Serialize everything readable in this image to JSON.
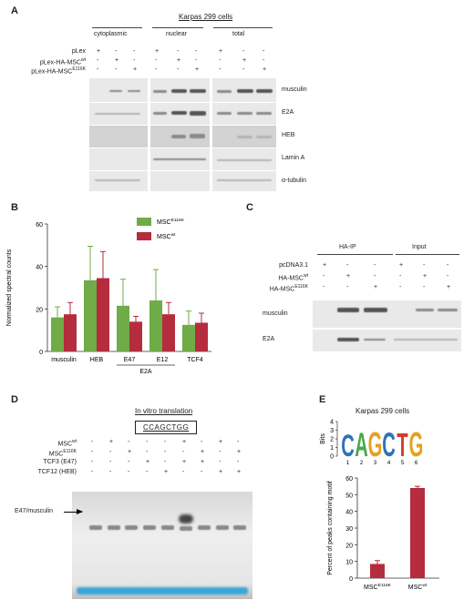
{
  "panelA": {
    "letter": "A",
    "title": "Karpas 299 cells",
    "fractions": [
      "cytoplasmic",
      "nuclear",
      "total"
    ],
    "rows": [
      {
        "label": "pLex",
        "marks": [
          "+",
          "-",
          "-",
          "+",
          "-",
          "-",
          "+",
          "-",
          "-"
        ]
      },
      {
        "label": "pLex-HA-MSC",
        "sup": "wt",
        "marks": [
          "-",
          "+",
          "-",
          "-",
          "+",
          "-",
          "-",
          "+",
          "-"
        ]
      },
      {
        "label": "pLex-HA-MSC",
        "sup": "E116K",
        "marks": [
          "-",
          "-",
          "+",
          "-",
          "-",
          "+",
          "-",
          "-",
          "+"
        ]
      }
    ],
    "blots": [
      "musculin",
      "E2A",
      "HEB",
      "Lamin A",
      "α-tubulin"
    ]
  },
  "panelB": {
    "letter": "B"
  },
  "panelC": {
    "letter": "C",
    "groups": [
      "HA-IP",
      "Input"
    ],
    "rows": [
      {
        "label": "pcDNA3.1",
        "marks": [
          "+",
          "-",
          "-",
          "+",
          "-",
          "-"
        ]
      },
      {
        "label": "HA-MSC",
        "sup": "wt",
        "marks": [
          "-",
          "+",
          "-",
          "-",
          "+",
          "-"
        ]
      },
      {
        "label": "HA-MSC",
        "sup": "E116K",
        "marks": [
          "-",
          "-",
          "+",
          "-",
          "-",
          "+"
        ]
      }
    ],
    "blots": [
      "musculin",
      "E2A"
    ]
  },
  "panelD": {
    "letter": "D",
    "title": "In vitro translation",
    "probe": "CCAGCTGG",
    "rows": [
      {
        "label": "MSC",
        "sup": "wt",
        "marks": [
          "-",
          "+",
          "-",
          "-",
          "-",
          "+",
          "-",
          "+",
          "-"
        ]
      },
      {
        "label": "MSC",
        "sup": "E116K",
        "marks": [
          "-",
          "-",
          "+",
          "-",
          "-",
          "-",
          "+",
          "-",
          "+"
        ]
      },
      {
        "label": "TCF3 (E47)",
        "marks": [
          "-",
          "-",
          "-",
          "+",
          "-",
          "+",
          "+",
          "-",
          "-"
        ]
      },
      {
        "label": "TCF12 (HEB)",
        "marks": [
          "-",
          "-",
          "-",
          "-",
          "+",
          "-",
          "-",
          "+",
          "+"
        ]
      }
    ],
    "band_label": "E47/musculin"
  },
  "panelE": {
    "letter": "E",
    "title": "Karpas 299 cells",
    "motif": {
      "letters": [
        "C",
        "A",
        "G",
        "C",
        "T",
        "G"
      ],
      "colors": [
        "#2f73b8",
        "#49a84a",
        "#e6a11f",
        "#2f73b8",
        "#d63b2c",
        "#e6a11f"
      ],
      "heights": [
        1.8,
        1.95,
        2.0,
        1.95,
        1.9,
        2.0
      ],
      "ylabel": "Bits",
      "yticks": [
        0,
        1,
        2,
        3,
        4
      ],
      "positions": [
        "1",
        "2",
        "3",
        "4",
        "5",
        "6"
      ]
    }
  },
  "chart_data": [
    {
      "type": "bar",
      "title": "",
      "ylabel": "Normalized spectral counts",
      "xlabel": "",
      "ylim": [
        0,
        60
      ],
      "yticks": [
        "0",
        "20",
        "40",
        "60"
      ],
      "categories": [
        "musculin",
        "HEB",
        "E47",
        "E12",
        "TCF4"
      ],
      "group_label": "E2A",
      "legend": [
        {
          "name": "MSC",
          "sup": "E116K",
          "color": "#6fab46"
        },
        {
          "name": "MSC",
          "sup": "wt",
          "color": "#b52c3e"
        }
      ],
      "series": [
        {
          "name": "MSCE116K",
          "color": "#6fab46",
          "values": [
            16,
            33.5,
            21.5,
            24,
            12.5
          ],
          "errors": [
            5,
            16,
            12.5,
            14.5,
            6.5
          ]
        },
        {
          "name": "MSCwt",
          "color": "#b52c3e",
          "values": [
            17.5,
            34.5,
            14,
            17.5,
            13.5
          ],
          "errors": [
            5.5,
            12.5,
            2.5,
            5.5,
            4.5
          ]
        }
      ]
    },
    {
      "type": "bar",
      "title": "",
      "ylabel": "Percent of peaks containing motif",
      "xlabel": "",
      "ylim": [
        0,
        60
      ],
      "yticks": [
        "0",
        "10",
        "20",
        "30",
        "40",
        "50",
        "60"
      ],
      "categories": [
        {
          "name": "MSC",
          "sup": "E116K"
        },
        {
          "name": "MSC",
          "sup": "wt"
        }
      ],
      "color": "#b52c3e",
      "values": [
        8.5,
        54
      ],
      "errors": [
        2,
        1
      ]
    }
  ]
}
